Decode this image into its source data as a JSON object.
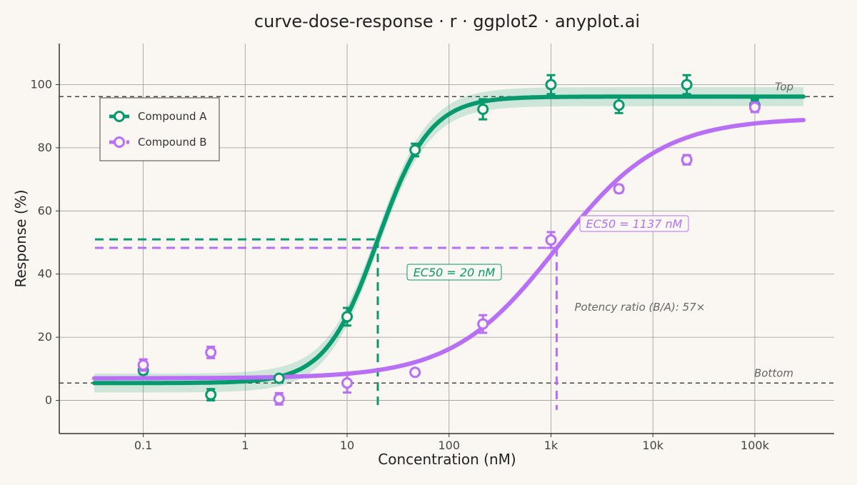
{
  "chart_data": {
    "type": "line",
    "title": "curve-dose-response · r · ggplot2 · anyplot.ai",
    "xlabel": "Concentration (nM)",
    "ylabel": "Response (%)",
    "x_scale": "log10",
    "xlim": [
      0.015,
      600000
    ],
    "ylim": [
      -10.5,
      113
    ],
    "x_ticks": [
      0.1,
      1,
      10,
      100,
      1000,
      10000,
      100000
    ],
    "x_tick_labels": [
      "0.1",
      "1",
      "10",
      "100",
      "1k",
      "10k",
      "100k"
    ],
    "y_ticks": [
      0,
      20,
      40,
      60,
      80,
      100
    ],
    "y_tick_labels": [
      "0",
      "20",
      "40",
      "60",
      "80",
      "100"
    ],
    "grid": true,
    "legend": {
      "position": "top-left",
      "entries": [
        "Compound A",
        "Compound B"
      ]
    },
    "series": [
      {
        "name": "Compound A",
        "color": "#079a6f",
        "fit": {
          "bottom": 5.5,
          "top": 96.2,
          "ec50": 20,
          "hill": 1.7,
          "x_range": [
            0.033,
            300000
          ]
        },
        "ci_band_halfwidth": 3,
        "points": [
          {
            "x": 0.1,
            "y": 9.5,
            "err": 1.2
          },
          {
            "x": 0.46,
            "y": 1.8,
            "err": 1.8
          },
          {
            "x": 2.15,
            "y": 7.0,
            "err": 0.9
          },
          {
            "x": 10,
            "y": 26.5,
            "err": 2.8
          },
          {
            "x": 46.4,
            "y": 79.3,
            "err": 2.0
          },
          {
            "x": 215,
            "y": 92.2,
            "err": 3.2
          },
          {
            "x": 1000,
            "y": 100,
            "err": 3.0
          },
          {
            "x": 4640,
            "y": 93.5,
            "err": 2.5
          },
          {
            "x": 21500,
            "y": 100,
            "err": 3.0
          },
          {
            "x": 100000,
            "y": 93.5,
            "err": 1.8
          }
        ],
        "ec50_label": "EC50 = 20 nM",
        "ec50_response": 51
      },
      {
        "name": "Compound B",
        "color": "#b86ef5",
        "fit": {
          "bottom": 7.0,
          "top": 89.5,
          "ec50": 1137,
          "hill": 0.85,
          "x_range": [
            0.033,
            300000
          ]
        },
        "points": [
          {
            "x": 0.1,
            "y": 11.2,
            "err": 1.8
          },
          {
            "x": 0.46,
            "y": 15.2,
            "err": 1.8
          },
          {
            "x": 2.15,
            "y": 0.5,
            "err": 1.8
          },
          {
            "x": 10,
            "y": 5.5,
            "err": 3.0
          },
          {
            "x": 46.4,
            "y": 8.9,
            "err": 0.9
          },
          {
            "x": 215,
            "y": 24.2,
            "err": 2.8
          },
          {
            "x": 1000,
            "y": 50.8,
            "err": 2.5
          },
          {
            "x": 4640,
            "y": 67.0,
            "err": 1.2
          },
          {
            "x": 21500,
            "y": 76.2,
            "err": 1.5
          },
          {
            "x": 100000,
            "y": 92.8,
            "err": 1.5
          }
        ],
        "ec50_label": "EC50 = 1137 nM",
        "ec50_response": 48.3
      }
    ],
    "reference_lines": [
      {
        "label": "Top",
        "y": 96.2
      },
      {
        "label": "Bottom",
        "y": 5.5
      }
    ],
    "annotations": [
      {
        "text": "Potency ratio (B/A): 57×",
        "x": 2000,
        "y": 29.5
      }
    ]
  }
}
